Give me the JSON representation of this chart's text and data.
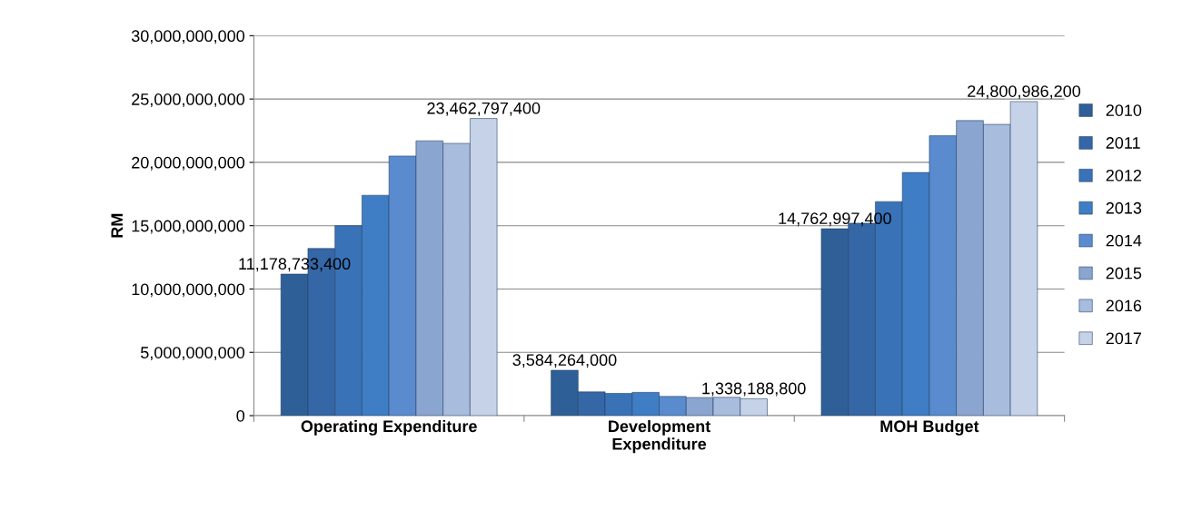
{
  "chart_data": {
    "type": "bar",
    "ylabel": "RM",
    "categories": [
      "Operating Expenditure",
      "Development\nExpenditure",
      "MOH Budget"
    ],
    "series": [
      {
        "name": "2010",
        "color": "#2f5f97",
        "values": [
          11178733400,
          3584264000,
          14762997400
        ],
        "value_labels": [
          "11,178,733,400",
          "3,584,264,000",
          "14,762,997,400"
        ]
      },
      {
        "name": "2011",
        "color": "#3567a6",
        "values": [
          13200000000,
          1880000000,
          15200000000
        ]
      },
      {
        "name": "2012",
        "color": "#3a72b8",
        "values": [
          15000000000,
          1760000000,
          16900000000
        ]
      },
      {
        "name": "2013",
        "color": "#3f7dc4",
        "values": [
          17400000000,
          1840000000,
          19200000000
        ]
      },
      {
        "name": "2014",
        "color": "#5a8bcf",
        "values": [
          20500000000,
          1520000000,
          22100000000
        ]
      },
      {
        "name": "2015",
        "color": "#8aa5d0",
        "values": [
          21700000000,
          1430000000,
          23300000000
        ]
      },
      {
        "name": "2016",
        "color": "#a8bcdd",
        "values": [
          21500000000,
          1450000000,
          23000000000
        ]
      },
      {
        "name": "2017",
        "color": "#c5d2e8",
        "values": [
          23462797400,
          1338188800,
          24800986200
        ],
        "value_labels": [
          "23,462,797,400",
          "1,338,188,800",
          "24,800,986,200"
        ]
      }
    ],
    "ylim": [
      0,
      30000000000
    ],
    "yticks": [
      {
        "value": 0,
        "label": "0"
      },
      {
        "value": 5000000000,
        "label": "5,000,000,000"
      },
      {
        "value": 10000000000,
        "label": "10,000,000,000"
      },
      {
        "value": 15000000000,
        "label": "15,000,000,000"
      },
      {
        "value": 20000000000,
        "label": "20,000,000,000"
      },
      {
        "value": 25000000000,
        "label": "25,000,000,000"
      },
      {
        "value": 30000000000,
        "label": "30,000,000,000"
      }
    ],
    "grid": "y",
    "legend": "right"
  }
}
